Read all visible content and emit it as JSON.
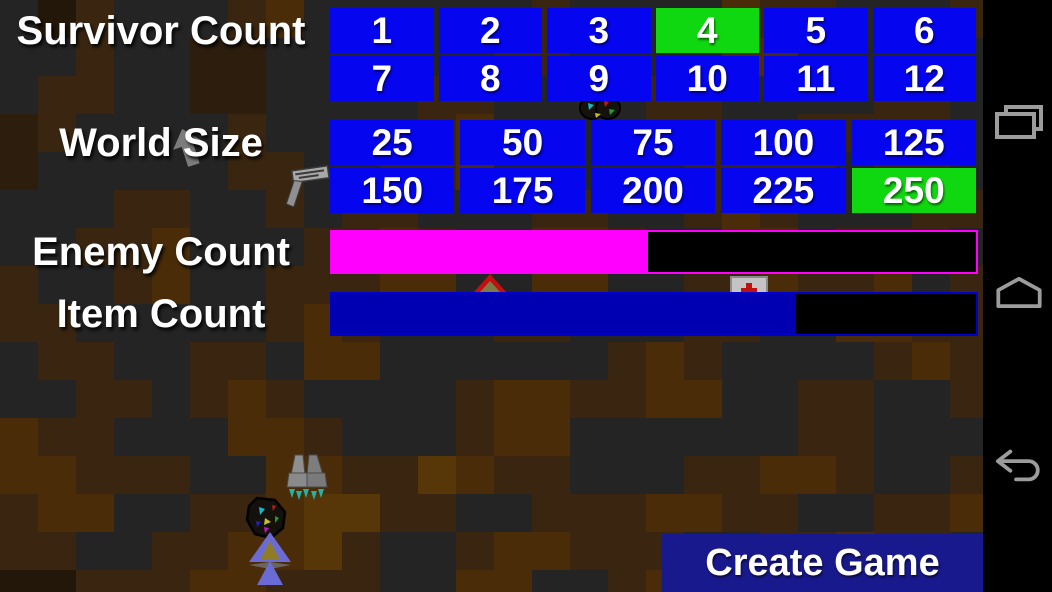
{
  "survivors": {
    "label": "Survivor Count",
    "values": [
      "1",
      "2",
      "3",
      "4",
      "5",
      "6",
      "7",
      "8",
      "9",
      "10",
      "11",
      "12"
    ],
    "selected": "4"
  },
  "world": {
    "label": "World Size",
    "values": [
      "25",
      "50",
      "75",
      "100",
      "125",
      "150",
      "175",
      "200",
      "225",
      "250"
    ],
    "selected": "250"
  },
  "enemy_slider": {
    "label": "Enemy Count",
    "fill_percent": 49,
    "fill_color": "#ff00ff",
    "border_color": "#ff00ff",
    "track_color": "#000000"
  },
  "item_slider": {
    "label": "Item Count",
    "fill_percent": 72,
    "fill_color": "#0000b2",
    "border_color": "#0000cc",
    "track_color": "#000000"
  },
  "create_game": {
    "label": "Create Game",
    "bg_color": "#19198e"
  },
  "nav_bar": {
    "bg_color": "#000000",
    "icon_color": "#9c9c9c",
    "icons": [
      "recent-apps",
      "home",
      "back"
    ]
  },
  "colors": {
    "button_blue": "#0505ef",
    "button_selected_green": "#10d810",
    "label_text": "#ffffff"
  },
  "background": {
    "tile_size": 38,
    "palette": {
      "g": "#242424",
      "a": "#2c1d0d",
      "b": "#3a2610",
      "c": "#4a2c08",
      "d": "#573608",
      "e": "#221708"
    },
    "rows": [
      "gebgggbcggggggbggggcbbgggbgg",
      "ggbggaaggggggbbggggccgggggbg",
      "gbbggaaggggbbggggbbggggbbggg",
      "abggggbggggbcggggbbggbbbbgbb",
      "agggggbbggbbcgggggbbbbgbbgbb",
      "gggbbggbgbbgggbbggbcbgggbbgg",
      "ggbbcgggbbcbggccbggccgbbbggg",
      "bggbcggbbbccggccggbbcbbcgbgg",
      "bbgggggbcbgggbbgggbbggccbbgg",
      "gbbggbbgccggggggbcbggggbcbgg",
      "ggbbgbcbggggbccbbccggbbggbbg",
      "cbbgggccbgggbccggggggbbggggb",
      "ccbbbggccbbdcbbgggbbccbggbbg",
      "bccggbbcddbbggbbbccbbggbbccb",
      "bbggbbccdbggbccbbbggbbcbbggb",
      "eebbbccbbbggccggbccggeebbggg"
    ]
  }
}
